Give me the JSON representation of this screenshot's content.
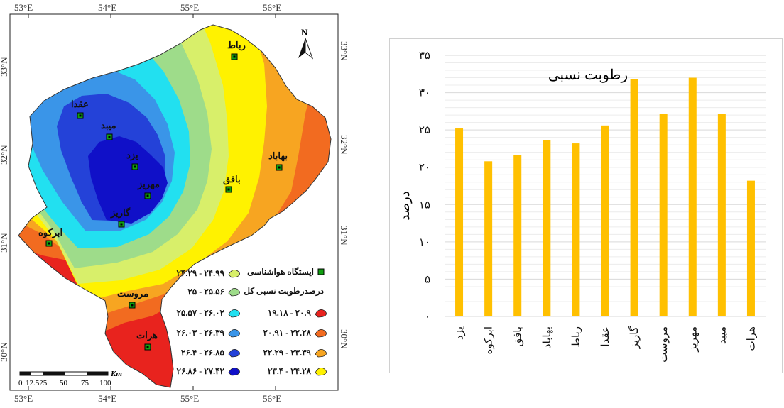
{
  "map": {
    "lon_labels": [
      "53°E",
      "54°E",
      "55°E",
      "56°E"
    ],
    "lat_labels": [
      "33°N",
      "32°N",
      "31°N",
      "30°N"
    ],
    "north": "N",
    "scale": {
      "unit": "Km",
      "labels": [
        "0",
        "12.525",
        "50",
        "75",
        "100"
      ]
    },
    "stations": [
      {
        "name": "رباط"
      },
      {
        "name": "عقدا"
      },
      {
        "name": "میبد"
      },
      {
        "name": "بهاباد"
      },
      {
        "name": "یزد"
      },
      {
        "name": "بافق"
      },
      {
        "name": "مهریز"
      },
      {
        "name": "گاریز"
      },
      {
        "name": "ابرکوه"
      },
      {
        "name": "مروست"
      },
      {
        "name": "هرات"
      }
    ],
    "legend": {
      "station_label": "ایستگاه هواشناسی",
      "title": "درصدرطوبت نسبی کل",
      "classes": [
        {
          "range": "۱۹.۱۸ - ۲۰.۹",
          "color": "#e8231e"
        },
        {
          "range": "۲۰.۹۱ - ۲۲.۲۸",
          "color": "#f26b20"
        },
        {
          "range": "۲۲.۲۹ - ۲۳.۳۹",
          "color": "#f7a521"
        },
        {
          "range": "۲۳.۴ - ۲۴.۲۸",
          "color": "#fff200"
        },
        {
          "range": "۲۴.۲۹ - ۲۴.۹۹",
          "color": "#d8ef6a"
        },
        {
          "range": "۲۵ - ۲۵.۵۶",
          "color": "#9edc8a"
        },
        {
          "range": "۲۵.۵۷ - ۲۶.۰۲",
          "color": "#22e0f0"
        },
        {
          "range": "۲۶.۰۳ - ۲۶.۳۹",
          "color": "#3a95e8"
        },
        {
          "range": "۲۶.۴ - ۲۶.۸۵",
          "color": "#2442d8"
        },
        {
          "range": "۲۶.۸۶ - ۲۷.۴۲",
          "color": "#1010c8"
        }
      ]
    }
  },
  "chart_data": {
    "type": "bar",
    "title": "رطوبت نسبی",
    "ylabel": "درصد",
    "ylim": [
      0,
      35
    ],
    "yticks": [
      "۰",
      "۵",
      "۱۰",
      "۱۵",
      "۲۰",
      "۲۵",
      "۳۰",
      "۳۵"
    ],
    "categories": [
      "یزد",
      "ابرکوه",
      "بافق",
      "بهاباد",
      "رباط",
      "عقدا",
      "گاریز",
      "مروست",
      "مهریز",
      "میبد",
      "هرات"
    ],
    "values": [
      25.2,
      20.8,
      21.6,
      23.6,
      23.2,
      25.6,
      31.8,
      27.2,
      32.0,
      27.2,
      18.2
    ],
    "bar_color": "#ffc000"
  }
}
